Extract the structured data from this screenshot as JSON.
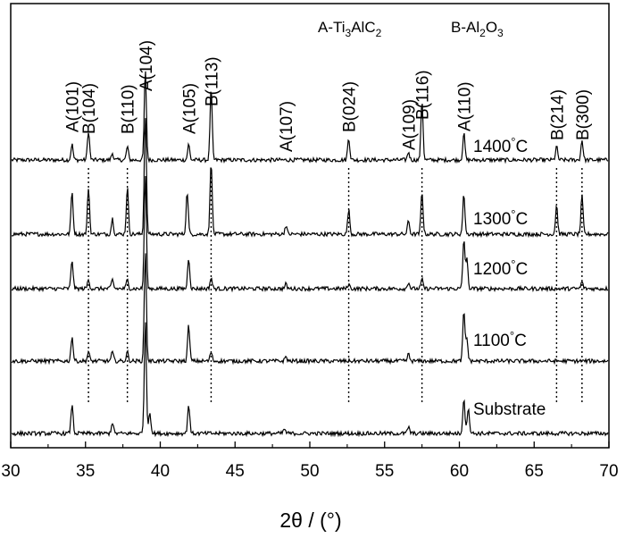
{
  "chart_data": {
    "type": "line",
    "title": "",
    "xlabel": "2θ / (°)",
    "ylabel": "",
    "xlim": [
      30,
      70
    ],
    "xticks": [
      30,
      35,
      40,
      45,
      50,
      55,
      60,
      65,
      70
    ],
    "grid": false,
    "legend": [
      {
        "code": "A",
        "phase": "Ti3AlC2",
        "display": [
          "A-Ti",
          "3",
          "AlC",
          "2"
        ]
      },
      {
        "code": "B",
        "phase": "Al2O3",
        "display": [
          "B-Al",
          "2",
          "O",
          "3"
        ]
      }
    ],
    "series": [
      {
        "name": "1400°C",
        "peaks": [
          [
            34.1,
            0.35
          ],
          [
            35.2,
            0.65
          ],
          [
            36.8,
            0.15
          ],
          [
            37.8,
            0.3
          ],
          [
            39.0,
            2.0
          ],
          [
            41.9,
            0.35
          ],
          [
            43.4,
            1.6
          ],
          [
            52.6,
            0.5
          ],
          [
            56.6,
            0.18
          ],
          [
            57.5,
            1.35
          ],
          [
            60.3,
            0.6
          ],
          [
            66.5,
            0.3
          ],
          [
            68.2,
            0.45
          ]
        ]
      },
      {
        "name": "1300°C",
        "peaks": [
          [
            34.1,
            0.95
          ],
          [
            35.2,
            1.05
          ],
          [
            36.8,
            0.35
          ],
          [
            37.8,
            1.05
          ],
          [
            39.0,
            2.7
          ],
          [
            41.8,
            0.95
          ],
          [
            43.4,
            1.65
          ],
          [
            48.4,
            0.2
          ],
          [
            52.6,
            0.55
          ],
          [
            56.6,
            0.3
          ],
          [
            57.5,
            0.95
          ],
          [
            60.3,
            0.9
          ],
          [
            66.5,
            0.65
          ],
          [
            68.2,
            0.85
          ]
        ]
      },
      {
        "name": "1200°C",
        "peaks": [
          [
            34.1,
            0.65
          ],
          [
            35.2,
            0.2
          ],
          [
            36.8,
            0.2
          ],
          [
            37.8,
            0.2
          ],
          [
            39.0,
            2.55
          ],
          [
            41.9,
            0.7
          ],
          [
            43.4,
            0.25
          ],
          [
            48.4,
            0.1
          ],
          [
            52.6,
            0.1
          ],
          [
            56.6,
            0.15
          ],
          [
            57.5,
            0.2
          ],
          [
            60.3,
            1.1
          ],
          [
            60.5,
            0.65
          ],
          [
            68.2,
            0.15
          ]
        ]
      },
      {
        "name": "1100°C",
        "peaks": [
          [
            34.1,
            0.55
          ],
          [
            35.2,
            0.2
          ],
          [
            36.8,
            0.2
          ],
          [
            37.8,
            0.2
          ],
          [
            39.0,
            2.45
          ],
          [
            41.9,
            0.8
          ],
          [
            43.4,
            0.2
          ],
          [
            48.4,
            0.1
          ],
          [
            56.6,
            0.15
          ],
          [
            60.3,
            1.1
          ],
          [
            60.5,
            0.5
          ]
        ]
      },
      {
        "name": "Substrate",
        "peaks": [
          [
            34.1,
            0.65
          ],
          [
            36.8,
            0.25
          ],
          [
            39.0,
            2.5
          ],
          [
            39.3,
            0.5
          ],
          [
            41.9,
            0.65
          ],
          [
            48.3,
            0.1
          ],
          [
            56.6,
            0.15
          ],
          [
            60.3,
            0.8
          ],
          [
            60.6,
            0.6
          ]
        ]
      }
    ],
    "peak_labels": [
      {
        "text": "A(101)",
        "x": 34.1
      },
      {
        "text": "B(104)",
        "x": 35.2
      },
      {
        "text": "B(110)",
        "x": 37.8
      },
      {
        "text": "A(104)",
        "x": 39.0
      },
      {
        "text": "A(105)",
        "x": 41.9
      },
      {
        "text": "B(113)",
        "x": 43.4
      },
      {
        "text": "A(107)",
        "x": 48.4
      },
      {
        "text": "B(024)",
        "x": 52.6
      },
      {
        "text": "A(109)",
        "x": 56.6
      },
      {
        "text": "B(116)",
        "x": 57.5
      },
      {
        "text": "A(110)",
        "x": 60.3
      },
      {
        "text": "B(214)",
        "x": 66.5
      },
      {
        "text": "B(300)",
        "x": 68.2
      }
    ],
    "reference_lines_x": [
      35.2,
      37.8,
      43.4,
      52.6,
      57.5,
      66.5,
      68.2
    ]
  }
}
